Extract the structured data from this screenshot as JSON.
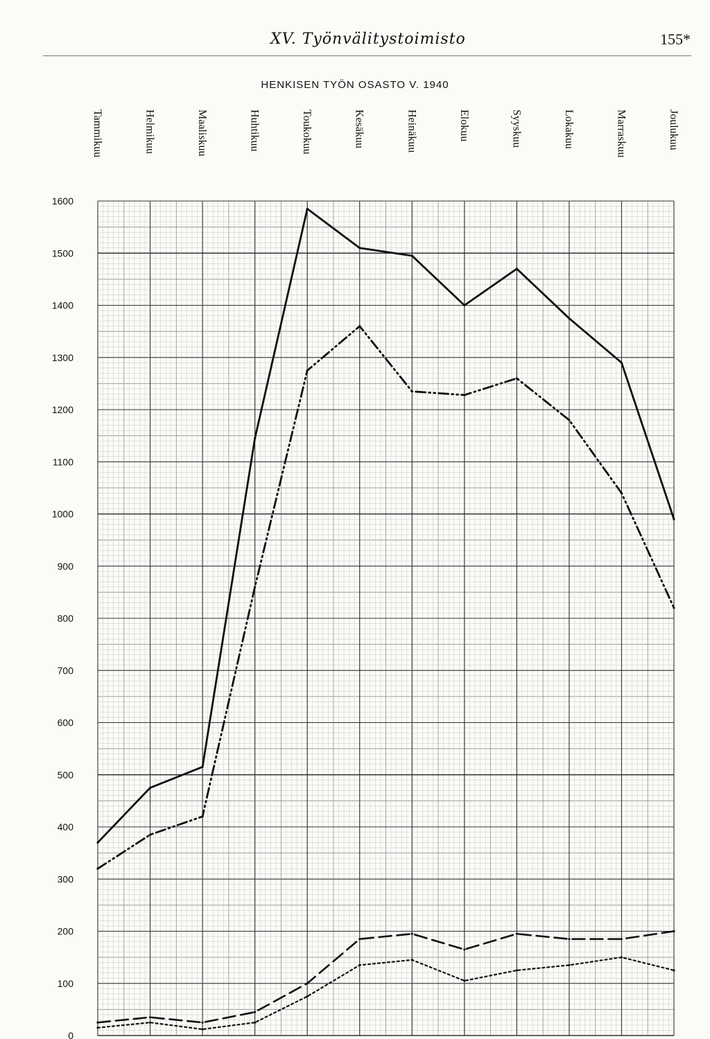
{
  "header": {
    "title": "XV.  Työnvälitystoimisto",
    "page_number": "155*"
  },
  "chart_data": {
    "type": "line",
    "title": "HENKISEN TYÖN OSASTO V. 1940",
    "categories": [
      "Tammikuu",
      "Helmikuu",
      "Maaliskuu",
      "Huhtikuu",
      "Toukokuu",
      "Kesäkuu",
      "Heinäkuu",
      "Elokuu",
      "Syyskuu",
      "Lokakuu",
      "Marraskuu",
      "Joulukuu"
    ],
    "ylim": [
      0,
      1600
    ],
    "yticks": [
      0,
      100,
      200,
      300,
      400,
      500,
      600,
      700,
      800,
      900,
      1000,
      1100,
      1200,
      1300,
      1400,
      1500,
      1600
    ],
    "grid": true,
    "legend": "none",
    "series": [
      {
        "style": "solid",
        "color": "#111111",
        "values": [
          370,
          475,
          515,
          1145,
          1585,
          1510,
          1495,
          1400,
          1470,
          1375,
          1290,
          990
        ]
      },
      {
        "style": "dash-dot",
        "color": "#111111",
        "values": [
          320,
          385,
          420,
          860,
          1275,
          1360,
          1235,
          1228,
          1260,
          1180,
          1040,
          820
        ]
      },
      {
        "style": "dashed",
        "color": "#111111",
        "values": [
          25,
          35,
          25,
          45,
          100,
          185,
          195,
          165,
          195,
          185,
          185,
          200
        ]
      },
      {
        "style": "dotted",
        "color": "#111111",
        "values": [
          15,
          25,
          12,
          25,
          75,
          135,
          145,
          105,
          125,
          135,
          150,
          125
        ]
      }
    ]
  }
}
